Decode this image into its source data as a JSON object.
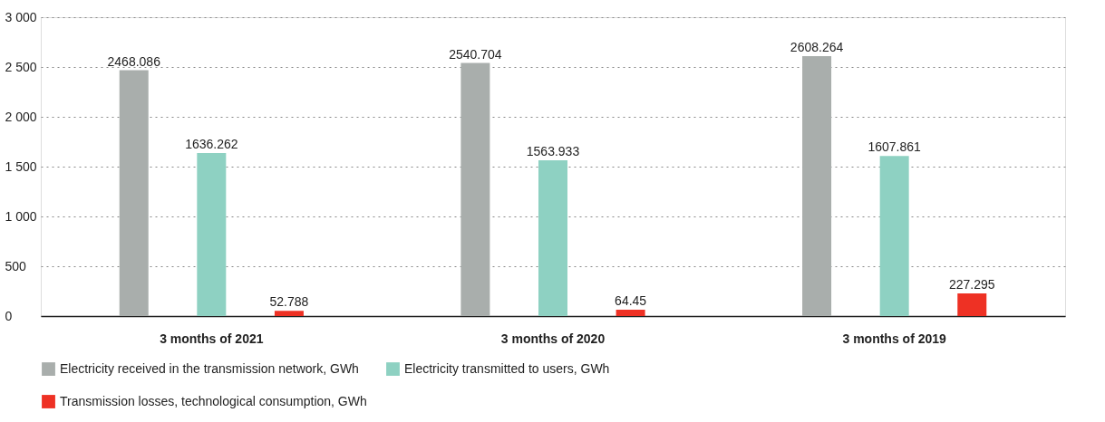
{
  "chart_data": {
    "type": "bar",
    "categories": [
      "3 months of 2021",
      "3 months of 2020",
      "3 months of 2019"
    ],
    "series": [
      {
        "name": "Electricity received in the transmission network, GWh",
        "color": "#a9aeac",
        "values": [
          2468.086,
          2540.704,
          2608.264
        ]
      },
      {
        "name": "Electricity transmitted to users, GWh",
        "color": "#8ed1c2",
        "values": [
          1636.262,
          1563.933,
          1607.861
        ]
      },
      {
        "name": "Transmission losses, technological consumption, GWh",
        "color": "#ee3124",
        "values": [
          52.788,
          64.45,
          227.295
        ]
      }
    ],
    "ylim": [
      0,
      3000
    ],
    "yticks": [
      0,
      500,
      {
        "value": 1000,
        "label": "1 000"
      },
      {
        "value": 1500,
        "label": "1 500"
      },
      {
        "value": 2000,
        "label": "2 000"
      },
      {
        "value": 2500,
        "label": "2 500"
      },
      {
        "value": 3000,
        "label": "3 000"
      }
    ],
    "grid": "y",
    "legend": "bottom",
    "data_labels": true
  }
}
